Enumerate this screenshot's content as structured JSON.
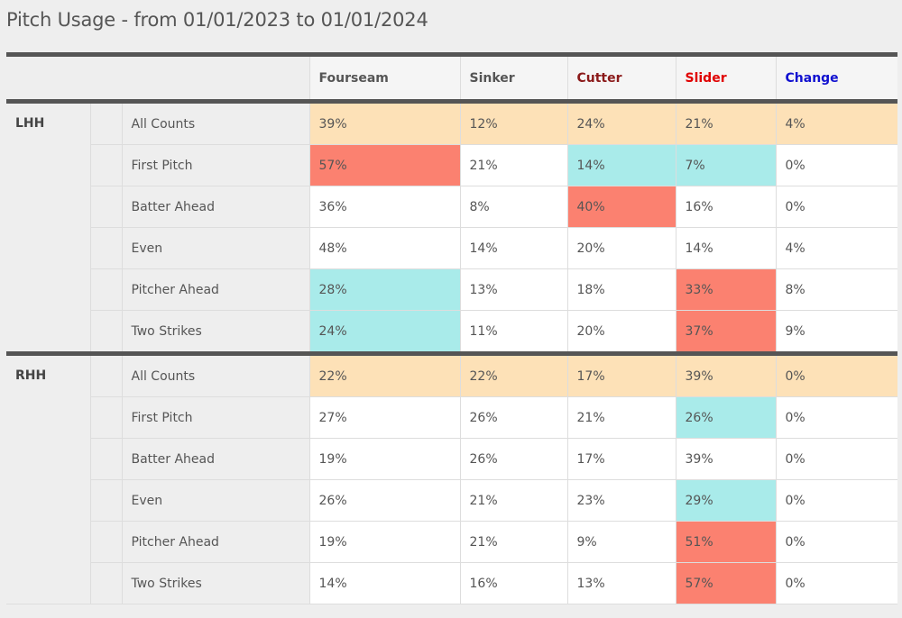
{
  "page": {
    "title": "Pitch Usage - from 01/01/2023 to 01/01/2024"
  },
  "colors": {
    "fourseam": "#555555",
    "sinker": "#555555",
    "cutter": "#8b1a1a",
    "slider": "#e00000",
    "change": "#1010d0",
    "all_counts_bg": "#fde1b7",
    "high_bg": "#fb8170",
    "low_bg": "#a9ebea"
  },
  "table": {
    "columns": [
      "Fourseam",
      "Sinker",
      "Cutter",
      "Slider",
      "Change"
    ],
    "groups": [
      {
        "label": "LHH",
        "rows": [
          {
            "count": "All Counts",
            "values": [
              "39%",
              "12%",
              "24%",
              "21%",
              "4%"
            ],
            "highlight": [
              "",
              "",
              "",
              "",
              ""
            ]
          },
          {
            "count": "First Pitch",
            "values": [
              "57%",
              "21%",
              "14%",
              "7%",
              "0%"
            ],
            "highlight": [
              "high",
              "",
              "low",
              "low",
              ""
            ]
          },
          {
            "count": "Batter Ahead",
            "values": [
              "36%",
              "8%",
              "40%",
              "16%",
              "0%"
            ],
            "highlight": [
              "",
              "",
              "high",
              "",
              ""
            ]
          },
          {
            "count": "Even",
            "values": [
              "48%",
              "14%",
              "20%",
              "14%",
              "4%"
            ],
            "highlight": [
              "",
              "",
              "",
              "",
              ""
            ]
          },
          {
            "count": "Pitcher Ahead",
            "values": [
              "28%",
              "13%",
              "18%",
              "33%",
              "8%"
            ],
            "highlight": [
              "low",
              "",
              "",
              "high",
              ""
            ]
          },
          {
            "count": "Two Strikes",
            "values": [
              "24%",
              "11%",
              "20%",
              "37%",
              "9%"
            ],
            "highlight": [
              "low",
              "",
              "",
              "high",
              ""
            ]
          }
        ]
      },
      {
        "label": "RHH",
        "rows": [
          {
            "count": "All Counts",
            "values": [
              "22%",
              "22%",
              "17%",
              "39%",
              "0%"
            ],
            "highlight": [
              "",
              "",
              "",
              "",
              ""
            ]
          },
          {
            "count": "First Pitch",
            "values": [
              "27%",
              "26%",
              "21%",
              "26%",
              "0%"
            ],
            "highlight": [
              "",
              "",
              "",
              "low",
              ""
            ]
          },
          {
            "count": "Batter Ahead",
            "values": [
              "19%",
              "26%",
              "17%",
              "39%",
              "0%"
            ],
            "highlight": [
              "",
              "",
              "",
              "",
              ""
            ]
          },
          {
            "count": "Even",
            "values": [
              "26%",
              "21%",
              "23%",
              "29%",
              "0%"
            ],
            "highlight": [
              "",
              "",
              "",
              "low",
              ""
            ]
          },
          {
            "count": "Pitcher Ahead",
            "values": [
              "19%",
              "21%",
              "9%",
              "51%",
              "0%"
            ],
            "highlight": [
              "",
              "",
              "",
              "high",
              ""
            ]
          },
          {
            "count": "Two Strikes",
            "values": [
              "14%",
              "16%",
              "13%",
              "57%",
              "0%"
            ],
            "highlight": [
              "",
              "",
              "",
              "high",
              ""
            ]
          }
        ]
      }
    ]
  }
}
